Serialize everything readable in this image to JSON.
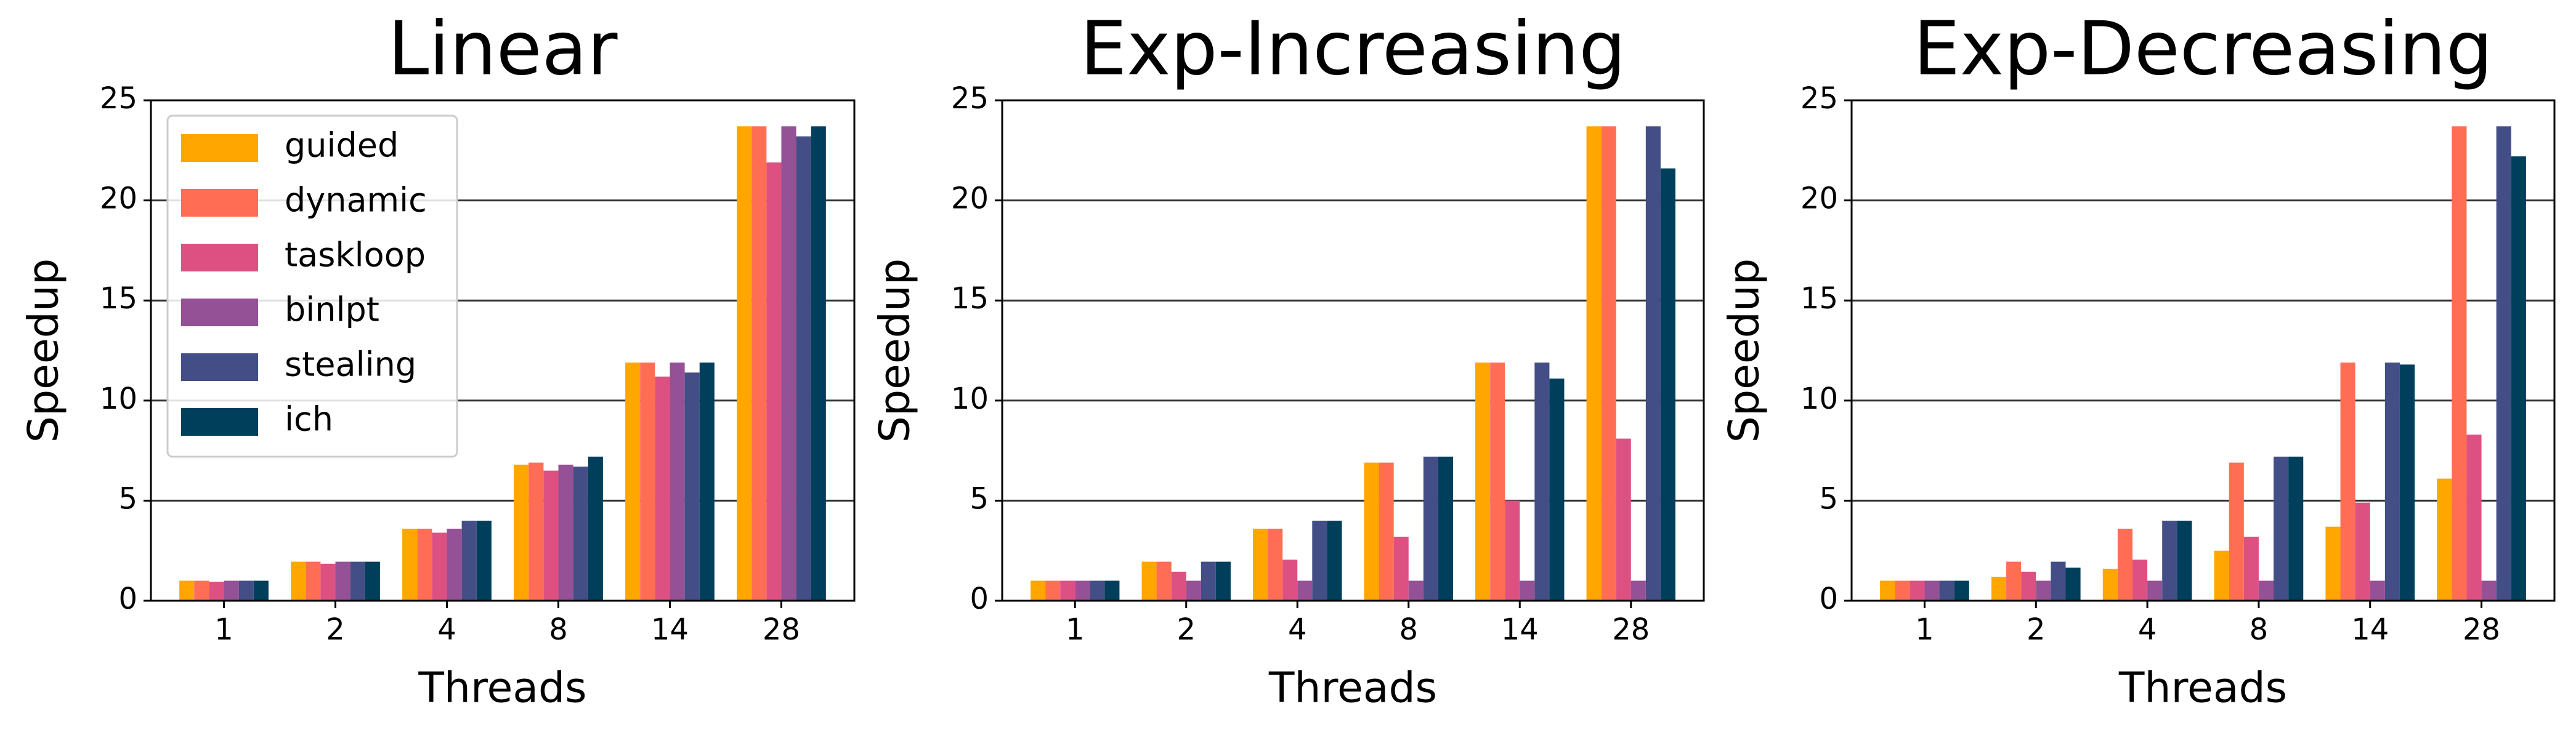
{
  "chart_data": [
    {
      "type": "bar",
      "title": "Linear",
      "xlabel": "Threads",
      "ylabel": "Speedup",
      "categories": [
        "1",
        "2",
        "4",
        "8",
        "14",
        "28"
      ],
      "ylim": [
        0,
        25
      ],
      "yticks": [
        0,
        5,
        10,
        15,
        20,
        25
      ],
      "grid": true,
      "legend": "upper left",
      "series": [
        {
          "name": "guided",
          "color": "#ffa600",
          "values": [
            1.0,
            1.95,
            3.6,
            6.8,
            11.9,
            23.7
          ]
        },
        {
          "name": "dynamic",
          "color": "#ff6e54",
          "values": [
            1.0,
            1.95,
            3.6,
            6.9,
            11.9,
            23.7
          ]
        },
        {
          "name": "taskloop",
          "color": "#dd5182",
          "values": [
            0.95,
            1.85,
            3.4,
            6.5,
            11.2,
            21.9
          ]
        },
        {
          "name": "binlpt",
          "color": "#955196",
          "values": [
            1.0,
            1.95,
            3.6,
            6.8,
            11.9,
            23.7
          ]
        },
        {
          "name": "stealing",
          "color": "#444e86",
          "values": [
            1.0,
            1.95,
            4.0,
            6.7,
            11.4,
            23.2
          ]
        },
        {
          "name": "ich",
          "color": "#003f5c",
          "values": [
            1.0,
            1.95,
            4.0,
            7.2,
            11.9,
            23.7
          ]
        }
      ]
    },
    {
      "type": "bar",
      "title": "Exp-Increasing",
      "xlabel": "Threads",
      "ylabel": "Speedup",
      "categories": [
        "1",
        "2",
        "4",
        "8",
        "14",
        "28"
      ],
      "ylim": [
        0,
        25
      ],
      "yticks": [
        0,
        5,
        10,
        15,
        20,
        25
      ],
      "grid": true,
      "series": [
        {
          "color": "#ffa600",
          "values": [
            1.0,
            1.95,
            3.6,
            6.9,
            11.9,
            23.7
          ]
        },
        {
          "color": "#ff6e54",
          "values": [
            1.0,
            1.95,
            3.6,
            6.9,
            11.9,
            23.7
          ]
        },
        {
          "color": "#dd5182",
          "values": [
            1.0,
            1.45,
            2.05,
            3.2,
            5.0,
            8.1
          ]
        },
        {
          "color": "#955196",
          "values": [
            1.0,
            1.0,
            1.0,
            1.0,
            1.0,
            1.0
          ]
        },
        {
          "color": "#444e86",
          "values": [
            1.0,
            1.95,
            4.0,
            7.2,
            11.9,
            23.7
          ]
        },
        {
          "color": "#003f5c",
          "values": [
            1.0,
            1.95,
            4.0,
            7.2,
            11.1,
            21.6
          ]
        }
      ]
    },
    {
      "type": "bar",
      "title": "Exp-Decreasing",
      "xlabel": "Threads",
      "ylabel": "Speedup",
      "categories": [
        "1",
        "2",
        "4",
        "8",
        "14",
        "28"
      ],
      "ylim": [
        0,
        25
      ],
      "yticks": [
        0,
        5,
        10,
        15,
        20,
        25
      ],
      "grid": true,
      "series": [
        {
          "color": "#ffa600",
          "values": [
            1.0,
            1.2,
            1.6,
            2.5,
            3.7,
            6.1
          ]
        },
        {
          "color": "#ff6e54",
          "values": [
            1.0,
            1.95,
            3.6,
            6.9,
            11.9,
            23.7
          ]
        },
        {
          "color": "#dd5182",
          "values": [
            1.0,
            1.45,
            2.05,
            3.2,
            4.9,
            8.3
          ]
        },
        {
          "color": "#955196",
          "values": [
            1.0,
            1.0,
            1.0,
            1.0,
            1.0,
            1.0
          ]
        },
        {
          "color": "#444e86",
          "values": [
            1.0,
            1.95,
            4.0,
            7.2,
            11.9,
            23.7
          ]
        },
        {
          "color": "#003f5c",
          "values": [
            1.0,
            1.65,
            4.0,
            7.2,
            11.8,
            22.2
          ]
        }
      ]
    }
  ]
}
